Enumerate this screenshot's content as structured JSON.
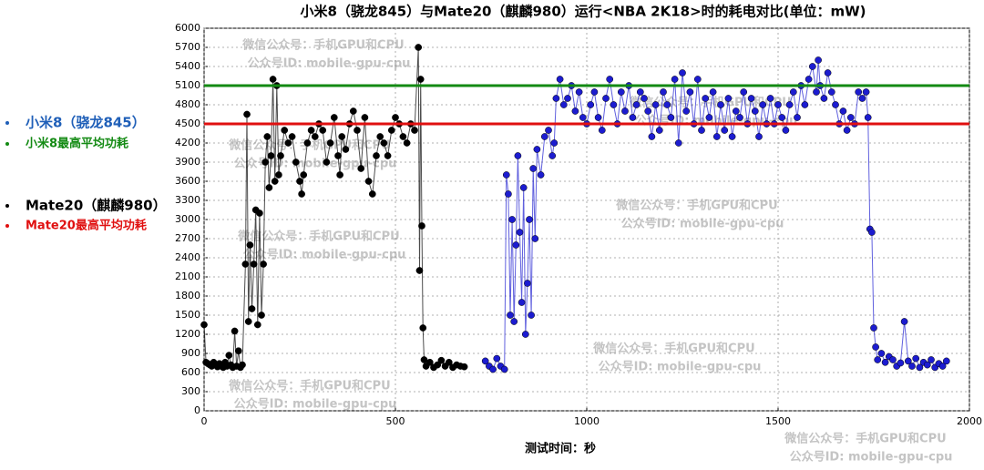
{
  "chart_data": {
    "type": "line",
    "title": "小米8（骁龙845）与Mate20（麒麟980）运行<NBA 2K18>时的耗电对比(单位：mW)",
    "x_label": "测试时间：秒",
    "watermark": [
      "微信公众号：手机GPU和CPU",
      "公众号ID: mobile-gpu-cpu"
    ],
    "xlim": [
      0,
      2000
    ],
    "xticks": [
      0,
      500,
      1000,
      1500,
      2000
    ],
    "ylim": [
      0,
      6000
    ],
    "yticks": [
      0,
      300,
      600,
      900,
      1200,
      1500,
      1800,
      2100,
      2400,
      2700,
      3000,
      3300,
      3600,
      3900,
      4200,
      4500,
      4800,
      5100,
      5400,
      5700,
      6000
    ],
    "grid": true,
    "legend_position": "left",
    "series": [
      {
        "name": "小米8（骁龙845）",
        "color": "#1f5fb8",
        "marker_color": "#1c1cd0",
        "x": [
          735,
          745,
          755,
          765,
          775,
          785,
          790,
          795,
          800,
          805,
          810,
          815,
          820,
          825,
          830,
          835,
          840,
          845,
          850,
          855,
          860,
          865,
          870,
          880,
          890,
          900,
          910,
          915,
          920,
          930,
          940,
          950,
          960,
          970,
          980,
          990,
          1000,
          1010,
          1020,
          1030,
          1040,
          1050,
          1060,
          1070,
          1080,
          1090,
          1100,
          1110,
          1120,
          1130,
          1140,
          1150,
          1160,
          1170,
          1180,
          1190,
          1200,
          1210,
          1220,
          1230,
          1240,
          1250,
          1260,
          1270,
          1280,
          1290,
          1300,
          1310,
          1320,
          1330,
          1340,
          1350,
          1360,
          1370,
          1380,
          1390,
          1400,
          1410,
          1420,
          1430,
          1440,
          1450,
          1460,
          1470,
          1480,
          1490,
          1500,
          1510,
          1520,
          1530,
          1540,
          1550,
          1560,
          1570,
          1580,
          1590,
          1600,
          1605,
          1610,
          1620,
          1630,
          1640,
          1650,
          1660,
          1670,
          1680,
          1690,
          1700,
          1710,
          1720,
          1730,
          1735,
          1740,
          1745,
          1750,
          1755,
          1760,
          1770,
          1780,
          1790,
          1800,
          1810,
          1820,
          1830,
          1840,
          1850,
          1860,
          1870,
          1880,
          1890,
          1900,
          1910,
          1920,
          1930,
          1940
        ],
        "values": [
          780,
          700,
          650,
          820,
          700,
          650,
          3700,
          3400,
          1500,
          3000,
          1400,
          2600,
          4000,
          2800,
          1700,
          3500,
          1200,
          2000,
          3000,
          1500,
          3800,
          2700,
          4100,
          3700,
          4300,
          4400,
          4000,
          4200,
          4900,
          5200,
          4800,
          4900,
          5100,
          4700,
          5000,
          4600,
          4500,
          4800,
          5000,
          4600,
          4400,
          4900,
          5200,
          4800,
          4500,
          5000,
          4700,
          5100,
          4600,
          4800,
          5000,
          4900,
          4700,
          4300,
          4800,
          4400,
          5000,
          4800,
          4600,
          5200,
          4200,
          5300,
          4700,
          5000,
          4500,
          5200,
          4400,
          4900,
          4600,
          5000,
          4300,
          4800,
          4400,
          4900,
          4300,
          4700,
          4600,
          5000,
          4500,
          4900,
          4700,
          4300,
          4800,
          4500,
          4900,
          4500,
          4800,
          4600,
          4400,
          4800,
          5000,
          4600,
          5100,
          4800,
          5200,
          5400,
          5000,
          5500,
          5100,
          4900,
          5300,
          5000,
          4800,
          4500,
          4700,
          4400,
          4600,
          4500,
          5000,
          4900,
          5000,
          4600,
          2850,
          2800,
          1300,
          1000,
          800,
          900,
          760,
          850,
          800,
          700,
          750,
          1400,
          780,
          700,
          820,
          680,
          760,
          720,
          800,
          680,
          740,
          700,
          780
        ]
      },
      {
        "name": "Mate20（麒麟980）",
        "color": "#000000",
        "marker_color": "#000000",
        "x": [
          0,
          5,
          10,
          15,
          20,
          25,
          30,
          35,
          40,
          45,
          50,
          55,
          60,
          65,
          70,
          75,
          80,
          85,
          90,
          95,
          100,
          108,
          112,
          116,
          120,
          125,
          130,
          135,
          140,
          145,
          150,
          155,
          160,
          165,
          170,
          175,
          180,
          185,
          190,
          195,
          200,
          210,
          220,
          230,
          240,
          250,
          255,
          260,
          270,
          280,
          290,
          300,
          310,
          320,
          330,
          340,
          350,
          355,
          360,
          370,
          380,
          390,
          400,
          410,
          420,
          430,
          440,
          450,
          460,
          470,
          480,
          490,
          500,
          510,
          520,
          530,
          540,
          550,
          560,
          563,
          566,
          569,
          572,
          575,
          580,
          590,
          600,
          610,
          620,
          630,
          640,
          650,
          660,
          670,
          680
        ],
        "values": [
          1350,
          760,
          740,
          720,
          700,
          760,
          720,
          690,
          740,
          700,
          680,
          760,
          700,
          870,
          720,
          680,
          1250,
          700,
          940,
          680,
          720,
          2300,
          4650,
          1400,
          2600,
          1600,
          2300,
          3150,
          1350,
          3100,
          1500,
          2300,
          3900,
          4300,
          3500,
          4000,
          5200,
          3600,
          5100,
          3700,
          4000,
          4400,
          4200,
          4300,
          3900,
          3600,
          3400,
          3700,
          4200,
          4400,
          4300,
          4500,
          4400,
          3900,
          4200,
          4600,
          4000,
          3700,
          4300,
          4100,
          4500,
          4700,
          4400,
          3800,
          4600,
          3600,
          3400,
          4000,
          4300,
          4200,
          4000,
          4400,
          4600,
          4500,
          4300,
          4200,
          4500,
          4400,
          5700,
          2200,
          5200,
          2900,
          1300,
          800,
          700,
          760,
          680,
          720,
          790,
          700,
          760,
          680,
          720,
          700,
          690
        ]
      }
    ],
    "reference_lines": [
      {
        "name": "小米8最高平均功耗",
        "value": 5100,
        "color": "#138a13"
      },
      {
        "name": "Mate20最高平均功耗",
        "value": 4500,
        "color": "#e01010"
      }
    ]
  }
}
